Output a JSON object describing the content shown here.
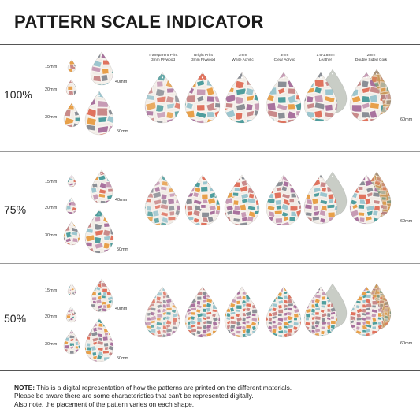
{
  "title": "PATTERN SCALE INDICATOR",
  "materials": [
    [
      "Transparent Print",
      "3mm Plywood"
    ],
    [
      "Bright Print",
      "3mm Plywood"
    ],
    [
      "3mm",
      "White Acrylic"
    ],
    [
      "3mm",
      "Clear Acrylic"
    ],
    [
      "1.6-1.8mm",
      "Leather"
    ],
    [
      "2mm",
      "Double Sided Cork"
    ]
  ],
  "sizes": [
    "15mm",
    "20mm",
    "30mm",
    "40mm",
    "50mm",
    "60mm"
  ],
  "scales": [
    "100%",
    "75%",
    "50%"
  ],
  "note": {
    "label": "NOTE:",
    "line1": " This is a digital representation of how the patterns are printed on the different materials.",
    "line2": "Please be aware there are some characteristics that can't be represented digitally.",
    "line3": "Also note, the placement of the pattern varies on each shape."
  },
  "colors": {
    "pink": "#c98a8a",
    "teal": "#4f9e9e",
    "purple": "#a9729e",
    "coral": "#e0735e",
    "orange": "#e8a04a",
    "grey": "#8b8f96",
    "lightblue": "#9cc6cf",
    "mauve": "#c79bb5",
    "leather": "#c9cdc6",
    "cork": "#c9985a"
  }
}
